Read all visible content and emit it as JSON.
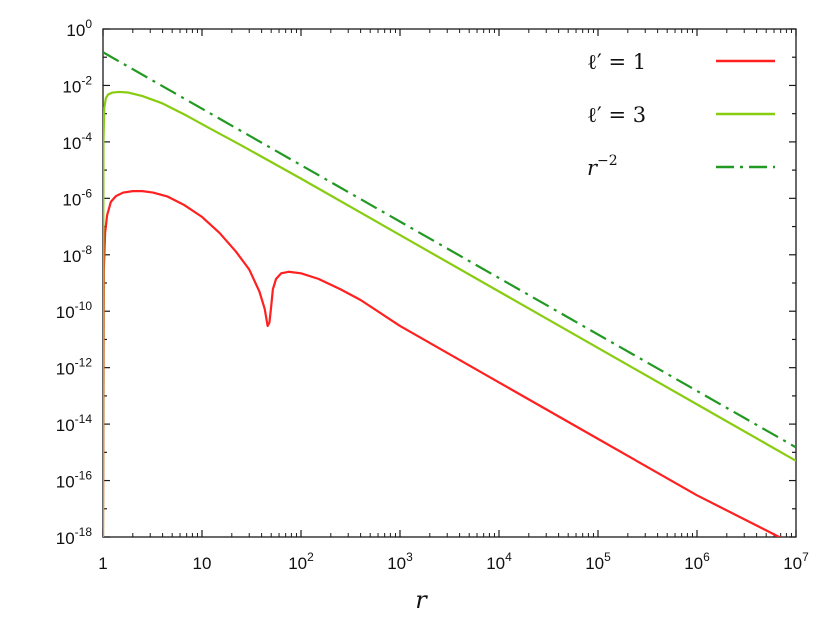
{
  "chart_data": {
    "type": "line",
    "xlabel": "r",
    "ylabel": "",
    "x_scale": "log",
    "y_scale": "log",
    "xlim": [
      1,
      10000000
    ],
    "ylim": [
      1e-18,
      1
    ],
    "grid": false,
    "legend_position": "top-right",
    "x_ticks": [
      {
        "value": 1,
        "base": "1",
        "exp": ""
      },
      {
        "value": 10,
        "base": "10",
        "exp": ""
      },
      {
        "value": 100,
        "base": "10",
        "exp": "2"
      },
      {
        "value": 1000,
        "base": "10",
        "exp": "3"
      },
      {
        "value": 10000,
        "base": "10",
        "exp": "4"
      },
      {
        "value": 100000,
        "base": "10",
        "exp": "5"
      },
      {
        "value": 1000000,
        "base": "10",
        "exp": "6"
      },
      {
        "value": 10000000,
        "base": "10",
        "exp": "7"
      }
    ],
    "y_ticks": [
      {
        "value": 1,
        "base": "10",
        "exp": "0"
      },
      {
        "value": 0.01,
        "base": "10",
        "exp": "-2"
      },
      {
        "value": 0.0001,
        "base": "10",
        "exp": "-4"
      },
      {
        "value": 1e-06,
        "base": "10",
        "exp": "-6"
      },
      {
        "value": 1e-08,
        "base": "10",
        "exp": "-8"
      },
      {
        "value": 1e-10,
        "base": "10",
        "exp": "-10"
      },
      {
        "value": 1e-12,
        "base": "10",
        "exp": "-12"
      },
      {
        "value": 1e-14,
        "base": "10",
        "exp": "-14"
      },
      {
        "value": 1e-16,
        "base": "10",
        "exp": "-16"
      },
      {
        "value": 1e-18,
        "base": "10",
        "exp": "-18"
      }
    ],
    "series": [
      {
        "name": "ℓ′ = 1",
        "name_parts": {
          "base": "ℓ′ = 1",
          "exp": ""
        },
        "color": "#ff2020",
        "dash": "solid",
        "x": [
          1,
          1.02,
          1.05,
          1.1,
          1.2,
          1.35,
          1.6,
          2.0,
          2.5,
          3.2,
          4.5,
          6.5,
          10,
          15,
          22,
          30,
          38,
          43,
          46,
          48,
          50,
          52,
          56,
          63,
          75,
          100,
          150,
          250,
          400,
          1000,
          10000,
          100000,
          1000000,
          10000000
        ],
        "y": [
          1e-18,
          3e-09,
          6e-08,
          2.5e-07,
          7.5e-07,
          1.2e-06,
          1.6e-06,
          1.8e-06,
          1.8e-06,
          1.6e-06,
          1.15e-06,
          6e-07,
          2.2e-07,
          6e-08,
          1.3e-08,
          3e-09,
          5e-10,
          1.2e-10,
          3e-11,
          4e-11,
          1.5e-10,
          6e-10,
          1.4e-09,
          2.2e-09,
          2.5e-09,
          2.2e-09,
          1.4e-09,
          6e-10,
          2.5e-10,
          3e-11,
          3e-13,
          3e-15,
          3e-17,
          5e-19
        ]
      },
      {
        "name": "ℓ′ = 3",
        "name_parts": {
          "base": "ℓ′ = 3",
          "exp": ""
        },
        "color": "#88cc11",
        "dash": "solid",
        "x": [
          1,
          1.01,
          1.03,
          1.07,
          1.13,
          1.25,
          1.45,
          1.8,
          2.5,
          4,
          7,
          12,
          25,
          100,
          1000,
          10000,
          100000,
          1000000,
          10000000
        ],
        "y": [
          1e-18,
          0.0001,
          0.0016,
          0.0036,
          0.0048,
          0.0056,
          0.0059,
          0.0056,
          0.0042,
          0.0023,
          0.00085,
          0.0003,
          7.5e-05,
          5e-06,
          5e-08,
          5e-10,
          5e-12,
          5e-14,
          5e-16
        ]
      },
      {
        "name": "r^-2",
        "name_parts": {
          "base": "r",
          "exp": "−2"
        },
        "color": "#229922",
        "dash": "dashdot",
        "x": [
          1,
          10000000
        ],
        "y": [
          0.15,
          1.5e-15
        ]
      }
    ]
  }
}
